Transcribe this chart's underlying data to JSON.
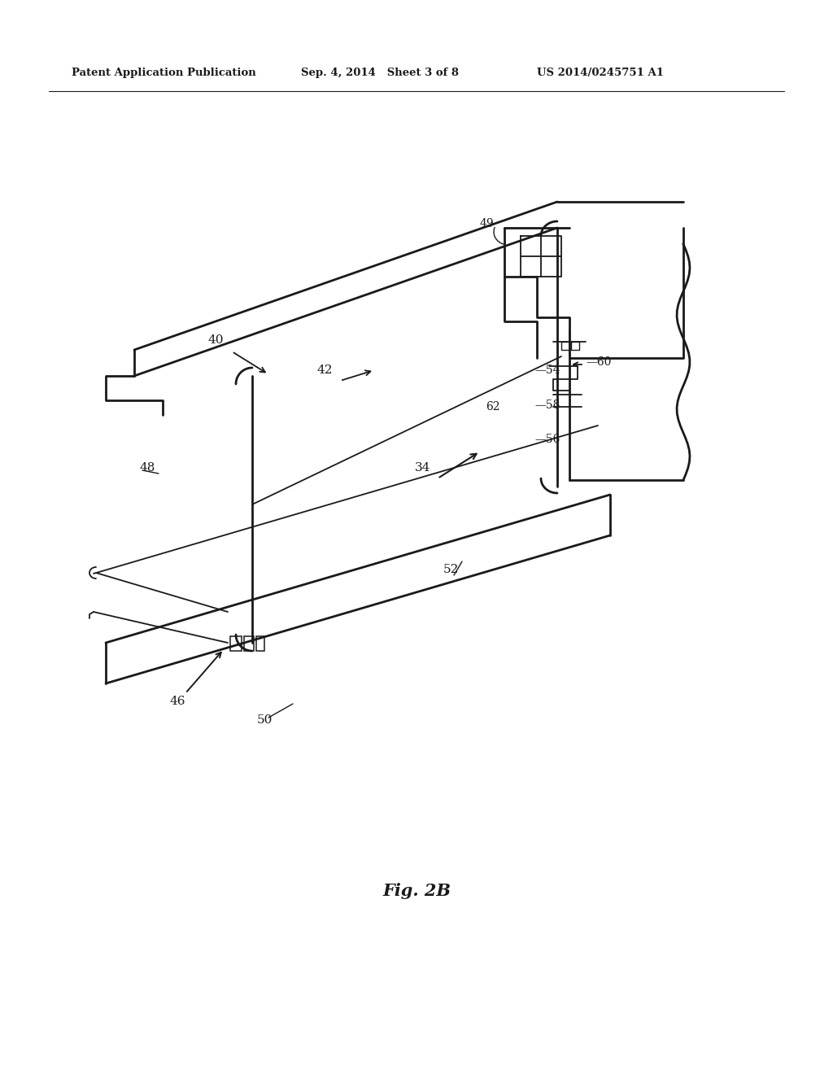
{
  "bg_color": "#ffffff",
  "lc": "#1a1a1a",
  "header_left": "Patent Application Publication",
  "header_mid": "Sep. 4, 2014   Sheet 3 of 8",
  "header_right": "US 2014/0245751 A1",
  "fig_label": "Fig. 2B"
}
